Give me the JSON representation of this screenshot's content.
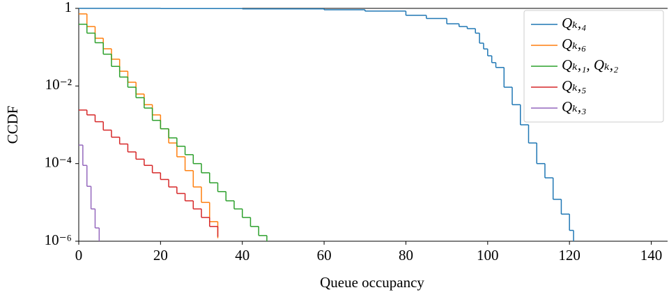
{
  "chart_data": {
    "type": "step",
    "log_y": true,
    "legend": "upper right",
    "xlabel": "Queue occupancy",
    "ylabel": "CCDF",
    "xlim": [
      0,
      144
    ],
    "xticks": [
      0,
      20,
      40,
      60,
      80,
      100,
      120,
      140
    ],
    "ylim": [
      1e-06,
      1
    ],
    "yticks": [
      {
        "value": 1e-06,
        "label": "10⁻⁶"
      },
      {
        "value": 0.0001,
        "label": "10⁻⁴"
      },
      {
        "value": 0.01,
        "label": "10⁻²"
      },
      1
    ],
    "series": [
      {
        "name": "Qₖ,₄",
        "color": "#1f77b4",
        "x": [
          0,
          20,
          40,
          60,
          70,
          80,
          85,
          90,
          93,
          95,
          97,
          98,
          99,
          100,
          101,
          102,
          104,
          106,
          108,
          110,
          112,
          114,
          116,
          118,
          120,
          121
        ],
        "values": [
          1,
          0.99,
          0.97,
          0.92,
          0.85,
          0.66,
          0.55,
          0.4,
          0.34,
          0.3,
          0.23,
          0.127,
          0.09,
          0.06,
          0.04,
          0.03,
          0.0093,
          0.0033,
          0.001,
          0.00034,
          0.0001,
          4.3e-05,
          1.2e-05,
          5e-06,
          1.9e-06,
          1e-06
        ]
      },
      {
        "name": "Qₖ,₆",
        "color": "#ff7f0e",
        "x": [
          0,
          2,
          4,
          6,
          8,
          10,
          12,
          14,
          16,
          18,
          20,
          22,
          24,
          26,
          28,
          30,
          32,
          34
        ],
        "values": [
          0.72,
          0.34,
          0.17,
          0.091,
          0.049,
          0.024,
          0.0125,
          0.0062,
          0.0033,
          0.0018,
          0.00079,
          0.00034,
          0.00015,
          6.6e-05,
          2.5e-05,
          1e-05,
          3.2e-06,
          1.2e-06
        ]
      },
      {
        "name": "Qₖ,₁, Qₖ,₂",
        "color": "#2ca02c",
        "x": [
          0,
          2,
          4,
          6,
          8,
          10,
          12,
          14,
          16,
          18,
          20,
          22,
          24,
          26,
          28,
          30,
          32,
          34,
          36,
          38,
          40,
          42,
          44,
          46
        ],
        "values": [
          0.39,
          0.23,
          0.13,
          0.066,
          0.032,
          0.017,
          0.0093,
          0.005,
          0.0027,
          0.0013,
          0.00079,
          0.00046,
          0.00028,
          0.00017,
          0.0001,
          5.8e-05,
          3.2e-05,
          1.9e-05,
          1.1e-05,
          6.8e-06,
          4.1e-06,
          2.4e-06,
          1.4e-06,
          1e-06
        ]
      },
      {
        "name": "Qₖ,₅",
        "color": "#d62728",
        "x": [
          0,
          2,
          4,
          6,
          8,
          10,
          12,
          14,
          16,
          18,
          20,
          22,
          24,
          26,
          28,
          30,
          32,
          34
        ],
        "values": [
          0.0024,
          0.0018,
          0.0012,
          0.00073,
          0.00048,
          0.00032,
          0.0002,
          0.00013,
          9e-05,
          5.8e-05,
          3.9e-05,
          2.5e-05,
          1.7e-05,
          1.1e-05,
          6.8e-06,
          4.1e-06,
          2.4e-06,
          1.3e-06
        ]
      },
      {
        "name": "Qₖ,₃",
        "color": "#9467bd",
        "x": [
          0,
          1,
          2,
          3,
          4,
          5
        ],
        "values": [
          0.0003,
          9e-05,
          2.6e-05,
          6.8e-06,
          2.2e-06,
          1e-06
        ]
      }
    ]
  }
}
